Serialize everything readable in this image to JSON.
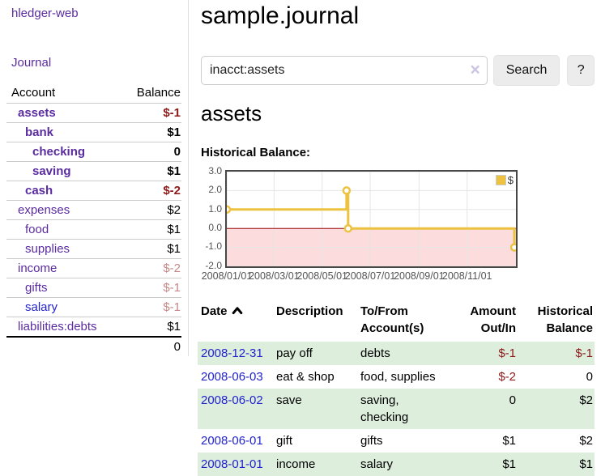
{
  "brand": "hledger-web",
  "sidebar": {
    "journal_link": "Journal",
    "table_header": {
      "account": "Account",
      "balance": "Balance"
    },
    "accounts": [
      {
        "name": "assets",
        "depth": 1,
        "bold": true,
        "balance": "$-1",
        "neg": true,
        "blue": false
      },
      {
        "name": "bank",
        "depth": 2,
        "bold": true,
        "balance": "$1",
        "neg": false,
        "blue": false
      },
      {
        "name": "checking",
        "depth": 3,
        "bold": true,
        "balance": "0",
        "neg": false,
        "blue": false
      },
      {
        "name": "saving",
        "depth": 3,
        "bold": true,
        "balance": "$1",
        "neg": false,
        "blue": false
      },
      {
        "name": "cash",
        "depth": 2,
        "bold": true,
        "balance": "$-2",
        "neg": true,
        "blue": false
      },
      {
        "name": "expenses",
        "depth": 1,
        "bold": false,
        "balance": "$2",
        "neg": false,
        "blue": false
      },
      {
        "name": "food",
        "depth": 2,
        "bold": false,
        "balance": "$1",
        "neg": false,
        "blue": false
      },
      {
        "name": "supplies",
        "depth": 2,
        "bold": false,
        "balance": "$1",
        "neg": false,
        "blue": false
      },
      {
        "name": "income",
        "depth": 1,
        "bold": false,
        "balance": "$-2",
        "neg": true,
        "blue": false
      },
      {
        "name": "gifts",
        "depth": 2,
        "bold": false,
        "balance": "$-1",
        "neg": true,
        "blue": false
      },
      {
        "name": "salary",
        "depth": 2,
        "bold": false,
        "balance": "$-1",
        "neg": true,
        "blue": true
      },
      {
        "name": "liabilities:debts",
        "depth": 1,
        "bold": false,
        "balance": "$1",
        "neg": false,
        "blue": false
      }
    ],
    "total": "0"
  },
  "header": {
    "title": "sample.journal"
  },
  "search": {
    "value": "inacct:assets",
    "clear_icon": "×",
    "search_button": "Search",
    "help_button": "?"
  },
  "account_view": {
    "heading": "assets",
    "chart_title": "Historical Balance:"
  },
  "chart_data": {
    "type": "line",
    "style": "step",
    "title": "Historical Balance",
    "series": [
      {
        "name": "$",
        "color": "#edc240",
        "points": [
          [
            "2008/01/01",
            1
          ],
          [
            "2008/06/01",
            2
          ],
          [
            "2008/06/03",
            0
          ],
          [
            "2008/12/31",
            -1
          ]
        ]
      }
    ],
    "x_range": [
      "2008/01/01",
      "2008/12/31"
    ],
    "x_ticks": [
      "2008/01/01",
      "2008/03/01",
      "2008/05/01",
      "2008/07/01",
      "2008/09/01",
      "2008/11/01"
    ],
    "y_ticks": [
      "3.0",
      "2.0",
      "1.0",
      "0.0",
      "-1.0",
      "-2.0"
    ],
    "ylim": [
      -2,
      3
    ],
    "grid": true,
    "legend_position": "top-right",
    "negative_region_fill": "#fcdcdc",
    "zero_line_color": "#990000",
    "grid_color": "#e5e5e5"
  },
  "register": {
    "columns": {
      "date": "Date",
      "sort_icon": "chevron-up",
      "description": "Description",
      "account": [
        "To/From",
        "Account(s)"
      ],
      "amount": [
        "Amount",
        "Out/In"
      ],
      "balance": [
        "Historical",
        "Balance"
      ]
    },
    "rows": [
      {
        "date": "2008-12-31",
        "description": "pay off",
        "accounts": "debts",
        "amount": "$-1",
        "amount_neg": true,
        "balance": "$-1",
        "balance_neg": true
      },
      {
        "date": "2008-06-03",
        "description": "eat & shop",
        "accounts": "food, supplies",
        "amount": "$-2",
        "amount_neg": true,
        "balance": "0",
        "balance_neg": false
      },
      {
        "date": "2008-06-02",
        "description": "save",
        "accounts": "saving, checking",
        "amount": "0",
        "amount_neg": false,
        "balance": "$2",
        "balance_neg": false
      },
      {
        "date": "2008-06-01",
        "description": "gift",
        "accounts": "gifts",
        "amount": "$1",
        "amount_neg": false,
        "balance": "$2",
        "balance_neg": false
      },
      {
        "date": "2008-01-01",
        "description": "income",
        "accounts": "salary",
        "amount": "$1",
        "amount_neg": false,
        "balance": "$1",
        "balance_neg": false
      }
    ]
  },
  "colors": {
    "accent_purple": "#5a2ca0",
    "link_blue": "#2323cc",
    "negative_strong": "#8d1a1a",
    "negative_soft": "#c38989",
    "row_green": "#ddeedd",
    "chart_line": "#edc240"
  }
}
